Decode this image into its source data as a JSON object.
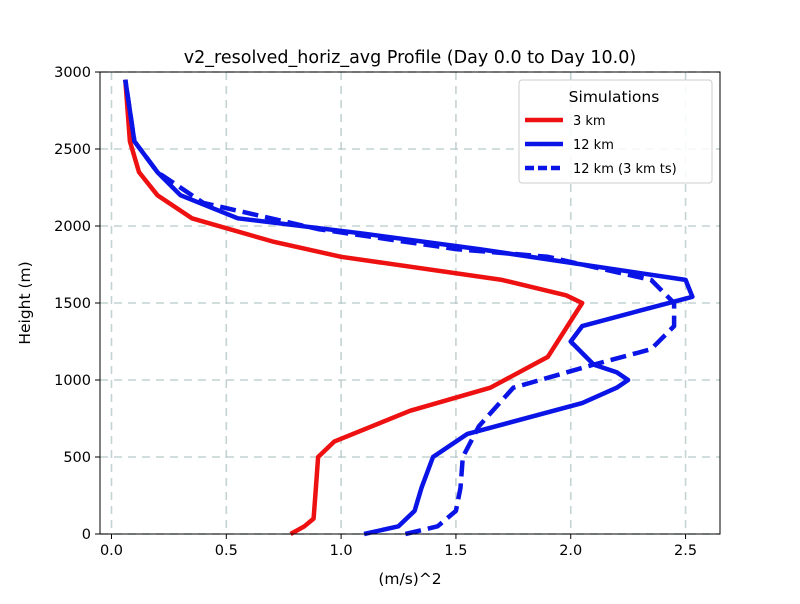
{
  "chart_data": {
    "type": "line",
    "title": "v2_resolved_horiz_avg Profile (Day 0.0 to Day 10.0)",
    "xlabel": "(m/s)^2",
    "ylabel": "Height (m)",
    "xlim": [
      -0.05,
      2.65
    ],
    "ylim": [
      0,
      3000
    ],
    "xticks": [
      0.0,
      0.5,
      1.0,
      1.5,
      2.0,
      2.5
    ],
    "xtick_labels": [
      "0.0",
      "0.5",
      "1.0",
      "1.5",
      "2.0",
      "2.5"
    ],
    "yticks": [
      0,
      500,
      1000,
      1500,
      2000,
      2500,
      3000
    ],
    "ytick_labels": [
      "0",
      "500",
      "1000",
      "1500",
      "2000",
      "2500",
      "3000"
    ],
    "grid": true,
    "legend": {
      "title": "Simulations",
      "placement": "top-right"
    },
    "series": [
      {
        "name": "3 km",
        "color": "#ee1111",
        "style": "solid",
        "points": [
          [
            0.78,
            0
          ],
          [
            0.84,
            50
          ],
          [
            0.88,
            100
          ],
          [
            0.89,
            300
          ],
          [
            0.9,
            500
          ],
          [
            0.97,
            600
          ],
          [
            1.3,
            800
          ],
          [
            1.65,
            950
          ],
          [
            1.9,
            1150
          ],
          [
            2.05,
            1500
          ],
          [
            1.98,
            1550
          ],
          [
            1.7,
            1650
          ],
          [
            1.0,
            1800
          ],
          [
            0.7,
            1900
          ],
          [
            0.35,
            2050
          ],
          [
            0.2,
            2200
          ],
          [
            0.12,
            2350
          ],
          [
            0.08,
            2550
          ],
          [
            0.06,
            2950
          ]
        ]
      },
      {
        "name": "12 km",
        "color": "#0a14e6",
        "style": "solid",
        "points": [
          [
            1.1,
            0
          ],
          [
            1.25,
            50
          ],
          [
            1.32,
            150
          ],
          [
            1.35,
            300
          ],
          [
            1.4,
            500
          ],
          [
            1.55,
            650
          ],
          [
            2.05,
            850
          ],
          [
            2.2,
            950
          ],
          [
            2.25,
            1000
          ],
          [
            2.2,
            1050
          ],
          [
            2.1,
            1100
          ],
          [
            2.0,
            1250
          ],
          [
            2.05,
            1350
          ],
          [
            2.3,
            1450
          ],
          [
            2.53,
            1540
          ],
          [
            2.5,
            1650
          ],
          [
            1.6,
            1850
          ],
          [
            1.1,
            1950
          ],
          [
            0.55,
            2050
          ],
          [
            0.3,
            2200
          ],
          [
            0.2,
            2350
          ],
          [
            0.1,
            2550
          ],
          [
            0.06,
            2950
          ]
        ]
      },
      {
        "name": "12 km (3 km ts)",
        "color": "#0a14e6",
        "style": "dashed",
        "points": [
          [
            1.28,
            0
          ],
          [
            1.42,
            50
          ],
          [
            1.5,
            150
          ],
          [
            1.52,
            300
          ],
          [
            1.53,
            500
          ],
          [
            1.6,
            700
          ],
          [
            1.75,
            950
          ],
          [
            2.1,
            1100
          ],
          [
            2.35,
            1200
          ],
          [
            2.45,
            1350
          ],
          [
            2.45,
            1500
          ],
          [
            2.35,
            1650
          ],
          [
            1.9,
            1800
          ],
          [
            1.5,
            1850
          ],
          [
            0.9,
            1980
          ],
          [
            0.4,
            2150
          ],
          [
            0.2,
            2350
          ],
          [
            0.1,
            2550
          ],
          [
            0.06,
            2950
          ]
        ]
      }
    ]
  }
}
